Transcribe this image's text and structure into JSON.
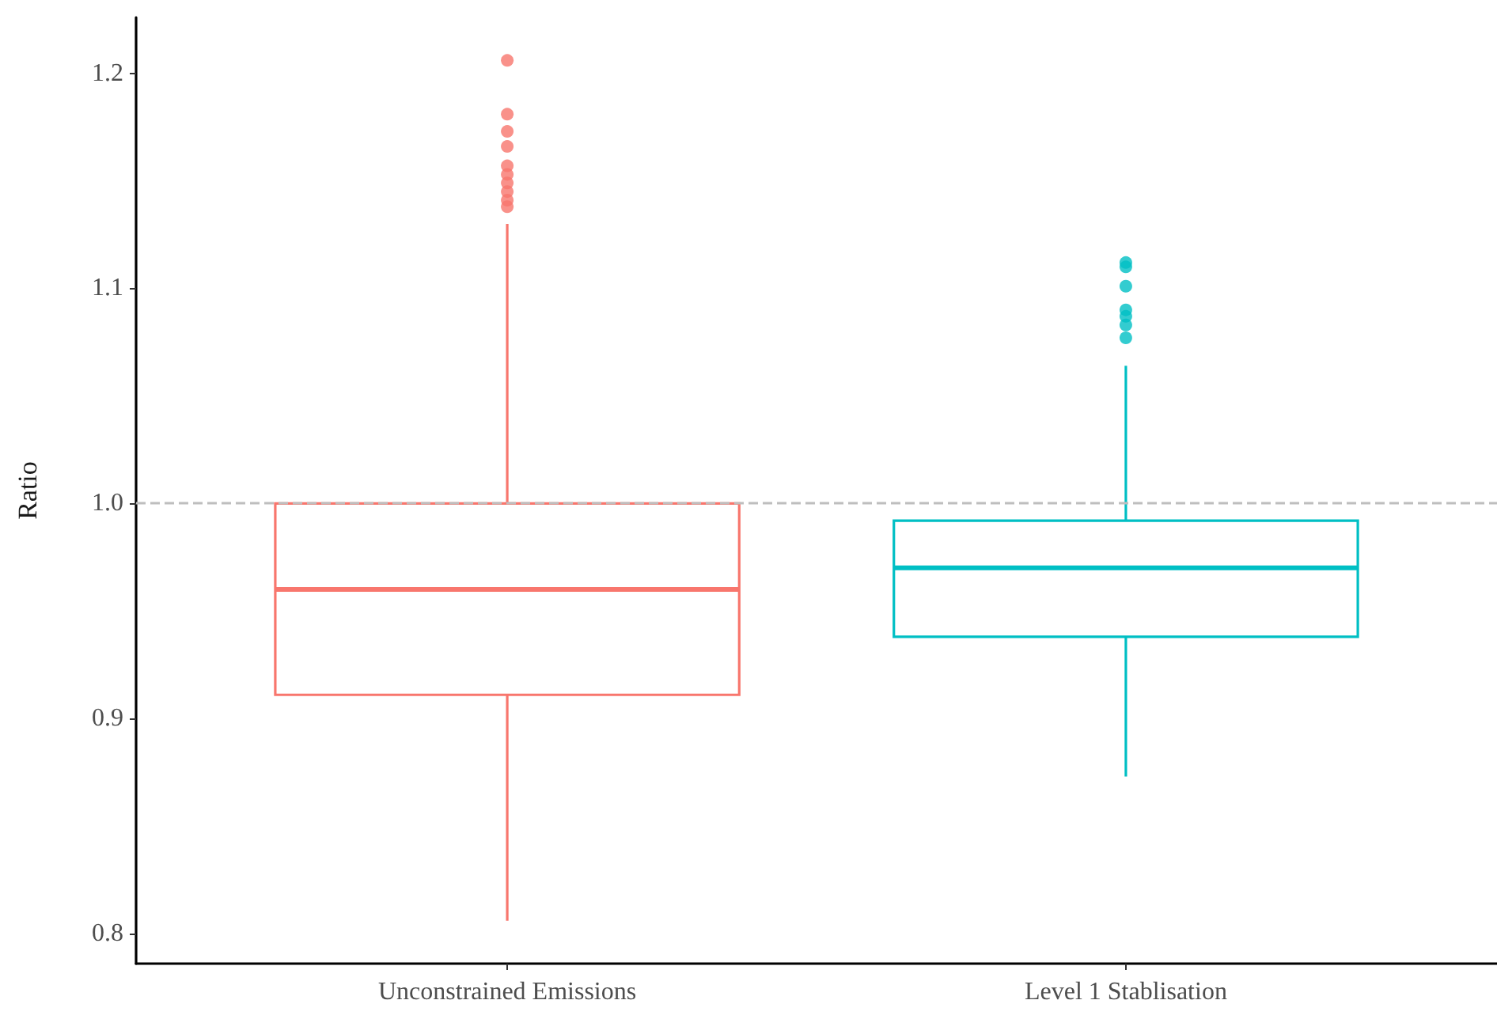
{
  "chart_data": {
    "type": "box",
    "ylabel": "Ratio",
    "categories": [
      "Unconstrained Emissions",
      "Level 1 Stablisation"
    ],
    "colors": [
      "#f8766d",
      "#00bfc4"
    ],
    "boxes": [
      {
        "low": 0.806,
        "q1": 0.911,
        "median": 0.96,
        "q3": 1.0,
        "high": 1.13,
        "outliers": [
          1.206,
          1.181,
          1.173,
          1.166,
          1.157,
          1.153,
          1.149,
          1.145,
          1.141,
          1.138
        ]
      },
      {
        "low": 0.873,
        "q1": 0.938,
        "median": 0.97,
        "q3": 0.992,
        "high": 1.064,
        "outliers": [
          1.112,
          1.11,
          1.101,
          1.09,
          1.087,
          1.083,
          1.077
        ]
      }
    ],
    "ylim": [
      0.786,
      1.226
    ],
    "yticks": [
      0.8,
      0.9,
      {
        "value": 1,
        "label": "1.0"
      },
      1.1,
      1.2
    ],
    "ref_lines": [
      {
        "axis": "y",
        "value": 1,
        "color": "#bebebe",
        "line_style": "dashed"
      }
    ],
    "grid": false
  }
}
